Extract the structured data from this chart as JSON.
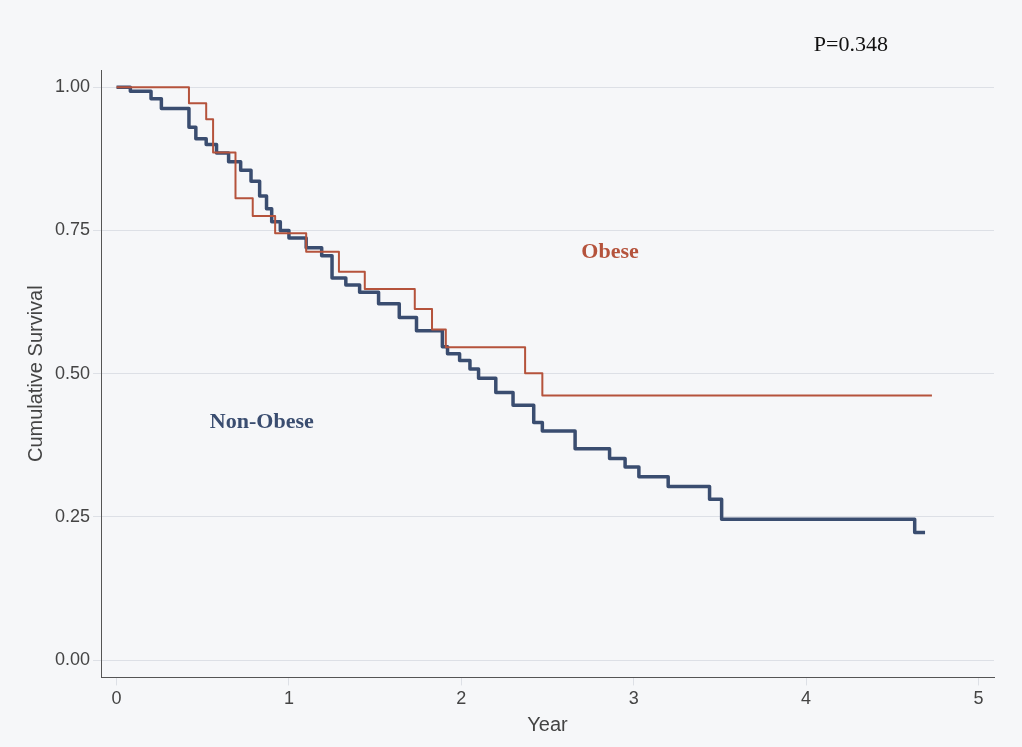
{
  "chart_data": {
    "type": "step",
    "xlabel": "Year",
    "ylabel": "Cumulative Survival",
    "xlim": [
      -0.09,
      5.09
    ],
    "xticks": [
      0,
      1,
      2,
      3,
      4,
      5
    ],
    "ylim": [
      -0.03,
      1.03
    ],
    "yticks": [
      {
        "value": 0,
        "label": "0.00"
      },
      {
        "value": 0.25,
        "label": "0.25"
      },
      {
        "value": 0.5,
        "label": "0.50"
      },
      {
        "value": 0.75,
        "label": "0.75"
      },
      {
        "value": 1,
        "label": "1.00"
      }
    ],
    "grid": "y",
    "legend": false,
    "marker": "none",
    "line_style": "solid",
    "annotations": [
      "P=0.348"
    ],
    "series": [
      {
        "name": "Obese",
        "color": "#b5533c",
        "x": [
          0,
          0.42,
          0.52,
          0.56,
          0.69,
          0.79,
          0.92,
          1.1,
          1.29,
          1.44,
          1.73,
          1.83,
          1.91,
          2.37,
          2.47,
          4.73
        ],
        "values": [
          1,
          0.972,
          0.944,
          0.886,
          0.806,
          0.775,
          0.745,
          0.713,
          0.678,
          0.648,
          0.613,
          0.577,
          0.546,
          0.501,
          0.462,
          0.462
        ]
      },
      {
        "name": "Non-Obese",
        "color": "#3a4d70",
        "x": [
          0,
          0.08,
          0.2,
          0.26,
          0.42,
          0.46,
          0.52,
          0.58,
          0.65,
          0.72,
          0.78,
          0.83,
          0.87,
          0.9,
          0.95,
          1.0,
          1.1,
          1.19,
          1.25,
          1.33,
          1.41,
          1.52,
          1.64,
          1.74,
          1.89,
          1.92,
          1.99,
          2.05,
          2.1,
          2.2,
          2.3,
          2.42,
          2.47,
          2.66,
          2.86,
          2.95,
          3.03,
          3.2,
          3.44,
          3.51,
          4.63,
          4.69
        ],
        "values": [
          1,
          0.993,
          0.98,
          0.963,
          0.93,
          0.91,
          0.9,
          0.885,
          0.87,
          0.855,
          0.836,
          0.81,
          0.788,
          0.765,
          0.75,
          0.737,
          0.72,
          0.706,
          0.667,
          0.655,
          0.642,
          0.622,
          0.598,
          0.575,
          0.547,
          0.535,
          0.523,
          0.508,
          0.492,
          0.467,
          0.445,
          0.415,
          0.4,
          0.369,
          0.352,
          0.337,
          0.32,
          0.303,
          0.281,
          0.246,
          0.223,
          0.223
        ]
      }
    ]
  }
}
